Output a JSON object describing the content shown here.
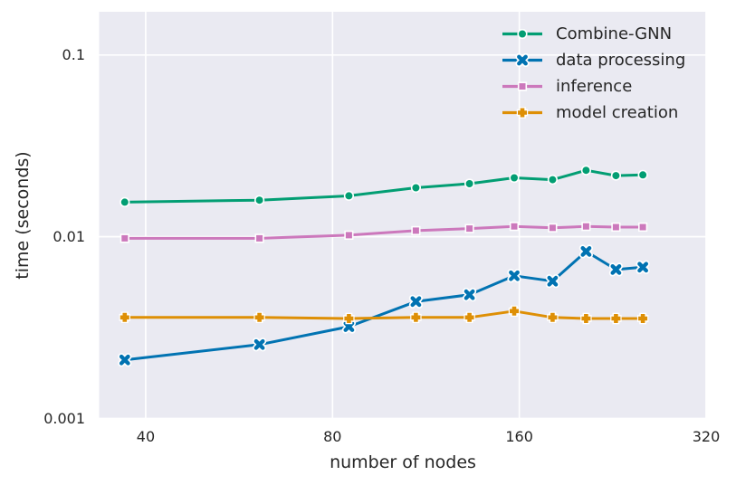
{
  "colors": {
    "page_bg": "#ffffff",
    "plot_bg": "#eaeaf2",
    "grid": "#ffffff",
    "text": "#262626"
  },
  "chart_data": {
    "type": "line",
    "title": "",
    "xlabel": "number of nodes",
    "ylabel": "time (seconds)",
    "x_scale": "log2",
    "y_scale": "log10",
    "grid": true,
    "legend_position": "upper right",
    "xlim": [
      33.65,
      320
    ],
    "ylim": [
      0.001,
      0.173
    ],
    "x_ticks": [
      40,
      80,
      160,
      320
    ],
    "x_tick_labels": [
      "40",
      "80",
      "160",
      "320"
    ],
    "y_ticks": [
      0.1,
      0.01,
      0.001
    ],
    "y_tick_labels": [
      "0.1",
      "0.01",
      "0.001"
    ],
    "x": [
      37,
      61,
      85,
      109,
      133,
      157,
      181,
      205,
      229,
      253
    ],
    "series": [
      {
        "name": "Combine-GNN",
        "color": "#029e73",
        "marker": "circle",
        "values": [
          0.0155,
          0.0159,
          0.0168,
          0.0186,
          0.0196,
          0.0211,
          0.0206,
          0.0232,
          0.0217,
          0.0219
        ]
      },
      {
        "name": "data processing",
        "color": "#0173b2",
        "marker": "x",
        "values": [
          0.0021,
          0.00255,
          0.0032,
          0.0044,
          0.0048,
          0.0061,
          0.0057,
          0.0083,
          0.0066,
          0.0068
        ]
      },
      {
        "name": "inference",
        "color": "#cc78bc",
        "marker": "square",
        "values": [
          0.0098,
          0.0098,
          0.0102,
          0.0108,
          0.0111,
          0.0114,
          0.0112,
          0.0114,
          0.0113,
          0.0113
        ]
      },
      {
        "name": "model creation",
        "color": "#de8f05",
        "marker": "plus",
        "values": [
          0.0036,
          0.0036,
          0.00355,
          0.0036,
          0.0036,
          0.0039,
          0.0036,
          0.00355,
          0.00355,
          0.00355
        ]
      }
    ]
  }
}
